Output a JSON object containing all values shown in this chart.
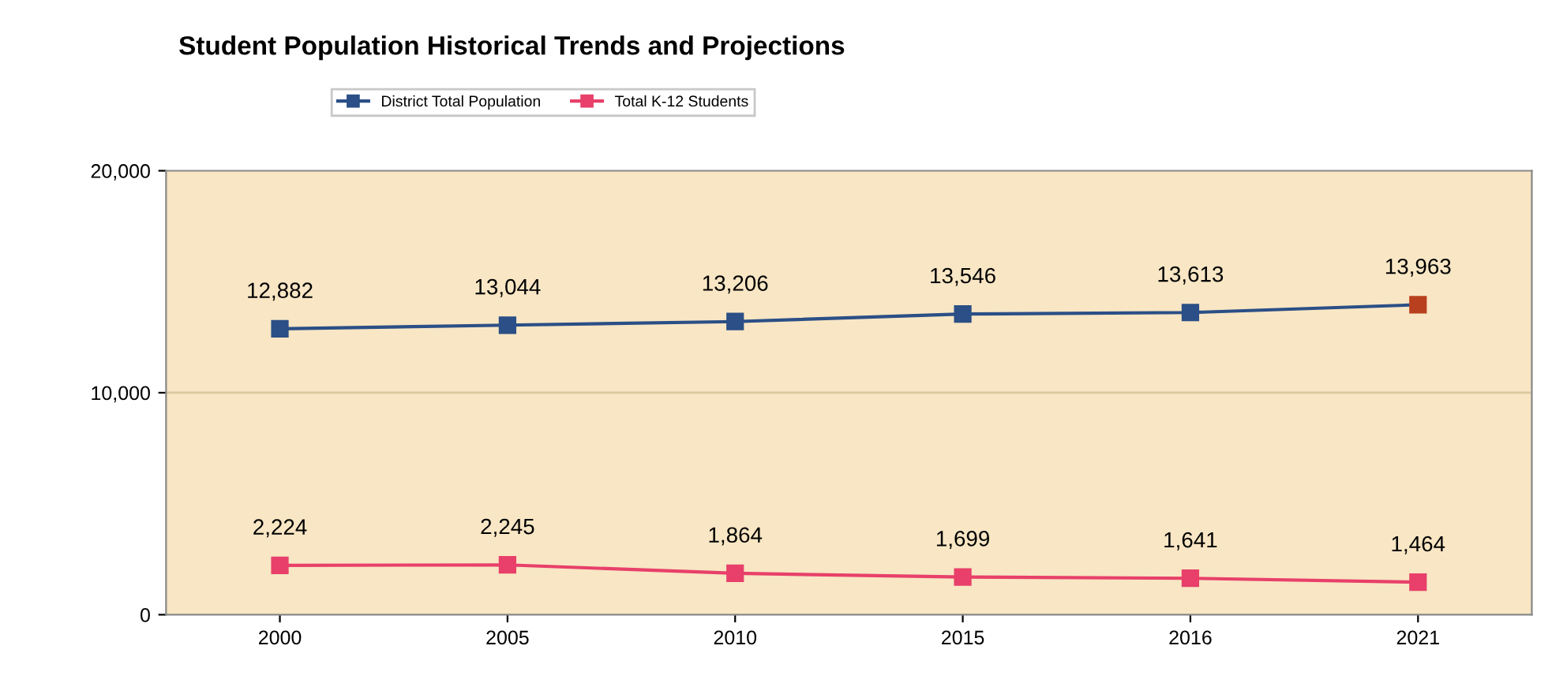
{
  "chart_data": {
    "type": "line",
    "title": "Student Population Historical Trends and Projections",
    "categories": [
      "2000",
      "2005",
      "2010",
      "2015",
      "2016",
      "2021"
    ],
    "series": [
      {
        "name": "District Total Population",
        "color": "#2b4f86",
        "colors": [
          "#2b4f86",
          "#2b4f86",
          "#2b4f86",
          "#2b4f86",
          "#2b4f86",
          "#b8401e"
        ],
        "values": [
          12882,
          13044,
          13206,
          13546,
          13613,
          13963
        ],
        "value_labels": [
          "12,882",
          "13,044",
          "13,206",
          "13,546",
          "13,613",
          "13,963"
        ]
      },
      {
        "name": "Total K-12 Students",
        "color": "#e8406a",
        "values": [
          2224,
          2245,
          1864,
          1699,
          1641,
          1464
        ],
        "value_labels": [
          "2,224",
          "2,245",
          "1,864",
          "1,699",
          "1,641",
          "1,464"
        ]
      }
    ],
    "ylim": [
      0,
      20000
    ],
    "yticks": [
      {
        "value": 0,
        "label": "0"
      },
      {
        "value": 10000,
        "label": "10,000"
      },
      {
        "value": 20000,
        "label": "20,000"
      }
    ],
    "ref_lines": [
      {
        "axis": "y",
        "value": 10000,
        "color": "#d8c8a0"
      }
    ],
    "legend": "top",
    "marker": "square",
    "line_style": "solid"
  }
}
